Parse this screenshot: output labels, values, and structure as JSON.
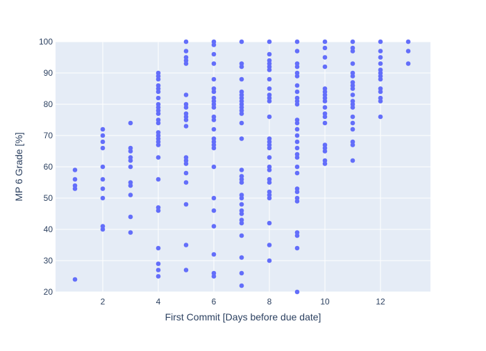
{
  "chart_data": {
    "type": "scatter",
    "title": "",
    "xlabel": "First Commit [Days before due date]",
    "ylabel": "MP 6 Grade [%]",
    "xlim": [
      0.3,
      13.8
    ],
    "ylim": [
      20,
      100
    ],
    "xticks": [
      2,
      4,
      6,
      8,
      10,
      12
    ],
    "yticks": [
      20,
      30,
      40,
      50,
      60,
      70,
      80,
      90,
      100
    ],
    "xtick_labels": [
      "2",
      "4",
      "6",
      "8",
      "10",
      "12"
    ],
    "ytick_labels": [
      "20",
      "30",
      "40",
      "50",
      "60",
      "70",
      "80",
      "90",
      "100"
    ],
    "grid": true,
    "marker_color": "#636efa",
    "plot_background": "#e5ecf6",
    "series": [
      {
        "points": [
          [
            1,
            59
          ],
          [
            1,
            56
          ],
          [
            1,
            54
          ],
          [
            1,
            53
          ],
          [
            1,
            24
          ],
          [
            2,
            72
          ],
          [
            2,
            70
          ],
          [
            2,
            68
          ],
          [
            2,
            66
          ],
          [
            2,
            60
          ],
          [
            2,
            56
          ],
          [
            2,
            53
          ],
          [
            2,
            50
          ],
          [
            2,
            41
          ],
          [
            2,
            40
          ],
          [
            3,
            74
          ],
          [
            3,
            66
          ],
          [
            3,
            65
          ],
          [
            3,
            63
          ],
          [
            3,
            62
          ],
          [
            3,
            60
          ],
          [
            3,
            55
          ],
          [
            3,
            54
          ],
          [
            3,
            51
          ],
          [
            3,
            44
          ],
          [
            3,
            39
          ],
          [
            4,
            90
          ],
          [
            4,
            89
          ],
          [
            4,
            88
          ],
          [
            4,
            86
          ],
          [
            4,
            85
          ],
          [
            4,
            84
          ],
          [
            4,
            82
          ],
          [
            4,
            80
          ],
          [
            4,
            79
          ],
          [
            4,
            78
          ],
          [
            4,
            77
          ],
          [
            4,
            75
          ],
          [
            4,
            74
          ],
          [
            4,
            71
          ],
          [
            4,
            70
          ],
          [
            4,
            69
          ],
          [
            4,
            68
          ],
          [
            4,
            67
          ],
          [
            4,
            63
          ],
          [
            4,
            56
          ],
          [
            4,
            47
          ],
          [
            4,
            46
          ],
          [
            4,
            34
          ],
          [
            4,
            29
          ],
          [
            4,
            27
          ],
          [
            4,
            25
          ],
          [
            5,
            100
          ],
          [
            5,
            97
          ],
          [
            5,
            95
          ],
          [
            5,
            94
          ],
          [
            5,
            93
          ],
          [
            5,
            83
          ],
          [
            5,
            80
          ],
          [
            5,
            79
          ],
          [
            5,
            77
          ],
          [
            5,
            76
          ],
          [
            5,
            75
          ],
          [
            5,
            73
          ],
          [
            5,
            63
          ],
          [
            5,
            62
          ],
          [
            5,
            61
          ],
          [
            5,
            58
          ],
          [
            5,
            55
          ],
          [
            5,
            48
          ],
          [
            5,
            35
          ],
          [
            5,
            27
          ],
          [
            6,
            100
          ],
          [
            6,
            99
          ],
          [
            6,
            96
          ],
          [
            6,
            93
          ],
          [
            6,
            88
          ],
          [
            6,
            85
          ],
          [
            6,
            84
          ],
          [
            6,
            82
          ],
          [
            6,
            81
          ],
          [
            6,
            80
          ],
          [
            6,
            79
          ],
          [
            6,
            76
          ],
          [
            6,
            75
          ],
          [
            6,
            72
          ],
          [
            6,
            69
          ],
          [
            6,
            68
          ],
          [
            6,
            67
          ],
          [
            6,
            66
          ],
          [
            6,
            60
          ],
          [
            6,
            50
          ],
          [
            6,
            46
          ],
          [
            6,
            41
          ],
          [
            6,
            32
          ],
          [
            6,
            26
          ],
          [
            6,
            25
          ],
          [
            7,
            100
          ],
          [
            7,
            93
          ],
          [
            7,
            92
          ],
          [
            7,
            88
          ],
          [
            7,
            84
          ],
          [
            7,
            83
          ],
          [
            7,
            82
          ],
          [
            7,
            81
          ],
          [
            7,
            80
          ],
          [
            7,
            79
          ],
          [
            7,
            78
          ],
          [
            7,
            77
          ],
          [
            7,
            74
          ],
          [
            7,
            69
          ],
          [
            7,
            59
          ],
          [
            7,
            57
          ],
          [
            7,
            56
          ],
          [
            7,
            55
          ],
          [
            7,
            51
          ],
          [
            7,
            50
          ],
          [
            7,
            48
          ],
          [
            7,
            46
          ],
          [
            7,
            45
          ],
          [
            7,
            43
          ],
          [
            7,
            42
          ],
          [
            7,
            38
          ],
          [
            7,
            31
          ],
          [
            7,
            26
          ],
          [
            7,
            22
          ],
          [
            8,
            100
          ],
          [
            8,
            96
          ],
          [
            8,
            94
          ],
          [
            8,
            93
          ],
          [
            8,
            92
          ],
          [
            8,
            91
          ],
          [
            8,
            88
          ],
          [
            8,
            85
          ],
          [
            8,
            83
          ],
          [
            8,
            82
          ],
          [
            8,
            81
          ],
          [
            8,
            76
          ],
          [
            8,
            69
          ],
          [
            8,
            68
          ],
          [
            8,
            67
          ],
          [
            8,
            66
          ],
          [
            8,
            63
          ],
          [
            8,
            60
          ],
          [
            8,
            59
          ],
          [
            8,
            56
          ],
          [
            8,
            55
          ],
          [
            8,
            52
          ],
          [
            8,
            51
          ],
          [
            8,
            50
          ],
          [
            8,
            42
          ],
          [
            8,
            35
          ],
          [
            8,
            30
          ],
          [
            9,
            100
          ],
          [
            9,
            97
          ],
          [
            9,
            93
          ],
          [
            9,
            92
          ],
          [
            9,
            90
          ],
          [
            9,
            89
          ],
          [
            9,
            86
          ],
          [
            9,
            84
          ],
          [
            9,
            82
          ],
          [
            9,
            81
          ],
          [
            9,
            80
          ],
          [
            9,
            75
          ],
          [
            9,
            74
          ],
          [
            9,
            72
          ],
          [
            9,
            70
          ],
          [
            9,
            68
          ],
          [
            9,
            66
          ],
          [
            9,
            64
          ],
          [
            9,
            63
          ],
          [
            9,
            60
          ],
          [
            9,
            58
          ],
          [
            9,
            53
          ],
          [
            9,
            52
          ],
          [
            9,
            50
          ],
          [
            9,
            49
          ],
          [
            9,
            39
          ],
          [
            9,
            38
          ],
          [
            9,
            34
          ],
          [
            9,
            20
          ],
          [
            10,
            100
          ],
          [
            10,
            98
          ],
          [
            10,
            95
          ],
          [
            10,
            92
          ],
          [
            10,
            85
          ],
          [
            10,
            84
          ],
          [
            10,
            83
          ],
          [
            10,
            82
          ],
          [
            10,
            81
          ],
          [
            10,
            79
          ],
          [
            10,
            77
          ],
          [
            10,
            76
          ],
          [
            10,
            74
          ],
          [
            10,
            67
          ],
          [
            10,
            66
          ],
          [
            10,
            65
          ],
          [
            10,
            62
          ],
          [
            10,
            61
          ],
          [
            11,
            100
          ],
          [
            11,
            98
          ],
          [
            11,
            97
          ],
          [
            11,
            93
          ],
          [
            11,
            90
          ],
          [
            11,
            89
          ],
          [
            11,
            87
          ],
          [
            11,
            86
          ],
          [
            11,
            85
          ],
          [
            11,
            83
          ],
          [
            11,
            81
          ],
          [
            11,
            80
          ],
          [
            11,
            79
          ],
          [
            11,
            76
          ],
          [
            11,
            74
          ],
          [
            11,
            72
          ],
          [
            11,
            68
          ],
          [
            11,
            67
          ],
          [
            11,
            62
          ],
          [
            12,
            100
          ],
          [
            12,
            97
          ],
          [
            12,
            95
          ],
          [
            12,
            93
          ],
          [
            12,
            91
          ],
          [
            12,
            90
          ],
          [
            12,
            89
          ],
          [
            12,
            88
          ],
          [
            12,
            85
          ],
          [
            12,
            84
          ],
          [
            12,
            82
          ],
          [
            12,
            81
          ],
          [
            12,
            76
          ],
          [
            13,
            100
          ],
          [
            13,
            97
          ],
          [
            13,
            93
          ]
        ]
      }
    ]
  }
}
